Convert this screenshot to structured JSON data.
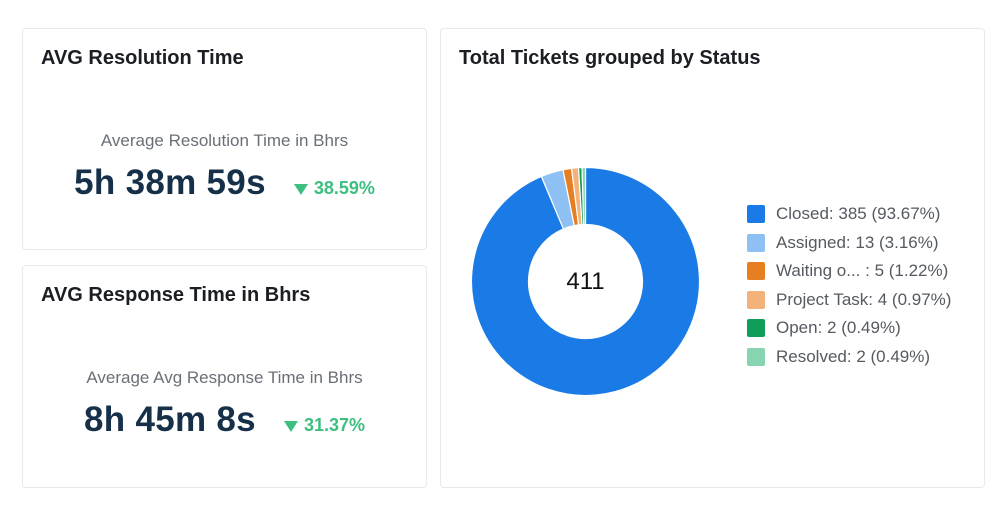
{
  "kpi_resolution": {
    "title": "AVG Resolution Time",
    "subtitle": "Average Resolution Time in Bhrs",
    "value": "5h 38m 59s",
    "change": "38.59%"
  },
  "kpi_response": {
    "title": "AVG Response Time in Bhrs",
    "subtitle": "Average Avg Response Time in Bhrs",
    "value": "8h 45m 8s",
    "change": "31.37%"
  },
  "status_chart": {
    "title": "Total Tickets grouped by Status",
    "total": "411",
    "legend": [
      {
        "label": "Closed: 385 (93.67%)"
      },
      {
        "label": "Assigned: 13 (3.16%)"
      },
      {
        "label": "Waiting o...  : 5 (1.22%)"
      },
      {
        "label": "Project Task: 4 (0.97%)"
      },
      {
        "label": "Open: 2 (0.49%)"
      },
      {
        "label": "Resolved: 2 (0.49%)"
      }
    ]
  },
  "colors": {
    "down_trend": "#3dbf80"
  },
  "chart_data": {
    "type": "pie",
    "title": "Total Tickets grouped by Status",
    "center_label": "411",
    "categories": [
      "Closed",
      "Assigned",
      "Waiting o...",
      "Project Task",
      "Open",
      "Resolved"
    ],
    "values": [
      385,
      13,
      5,
      4,
      2,
      2
    ],
    "percentages": [
      93.67,
      3.16,
      1.22,
      0.97,
      0.49,
      0.49
    ],
    "colors": [
      "#1a7ae6",
      "#8ec0f3",
      "#e67e22",
      "#f2b27a",
      "#0f9d58",
      "#86d4b0"
    ],
    "legend_position": "right"
  }
}
